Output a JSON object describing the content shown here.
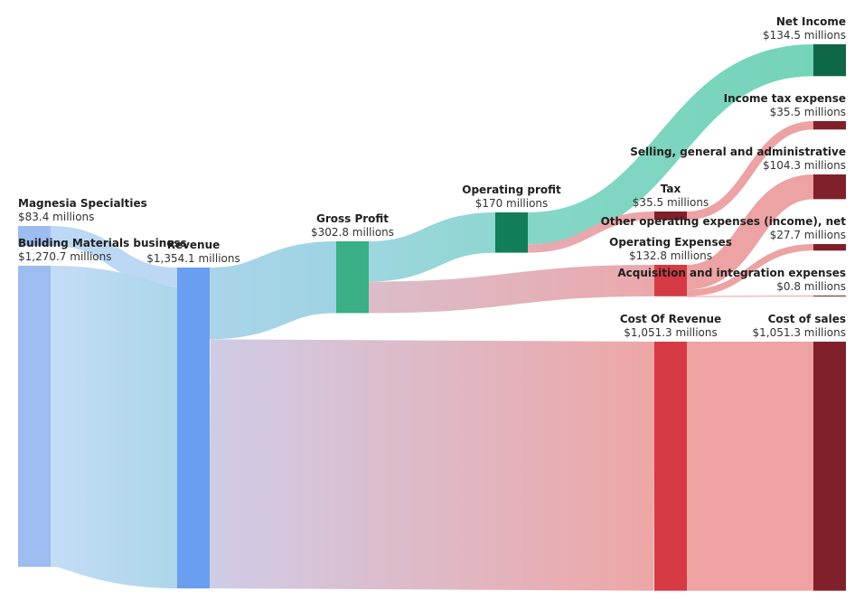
{
  "chart_data": {
    "type": "sankey",
    "title": "",
    "units": "$ millions",
    "nodes": [
      {
        "id": "magnesia",
        "name": "Magnesia Specialties",
        "value_label": "$83.4 millions",
        "value": 83.4,
        "color": "#9dbcef",
        "label_anchor": "start"
      },
      {
        "id": "building",
        "name": "Building Materials business",
        "value_label": "$1,270.7 millions",
        "value": 1270.7,
        "color": "#9dbcef",
        "label_anchor": "start"
      },
      {
        "id": "revenue",
        "name": "Revenue",
        "value_label": "$1,354.1 millions",
        "value": 1354.1,
        "color": "#6a9ef0",
        "label_anchor": "middle"
      },
      {
        "id": "gross_profit",
        "name": "Gross Profit",
        "value_label": "$302.8 millions",
        "value": 302.8,
        "color": "#3aae85",
        "label_anchor": "middle"
      },
      {
        "id": "cost_of_revenue",
        "name": "Cost Of Revenue",
        "value_label": "$1,051.3 millions",
        "value": 1051.3,
        "color": "#d63a44",
        "label_anchor": "middle"
      },
      {
        "id": "operating_profit",
        "name": "Operating profit",
        "value_label": "$170 millions",
        "value": 170,
        "color": "#117d59",
        "label_anchor": "middle"
      },
      {
        "id": "operating_expenses",
        "name": "Operating Expenses",
        "value_label": "$132.8 millions",
        "value": 132.8,
        "color": "#d63a44",
        "label_anchor": "middle"
      },
      {
        "id": "tax",
        "name": "Tax",
        "value_label": "$35.5 millions",
        "value": 35.5,
        "color": "#80202a",
        "label_anchor": "middle"
      },
      {
        "id": "net_income",
        "name": "Net Income",
        "value_label": "$134.5 millions",
        "value": 134.5,
        "color": "#0e6747",
        "label_anchor": "end"
      },
      {
        "id": "income_tax",
        "name": "Income tax expense",
        "value_label": "$35.5 millions",
        "value": 35.5,
        "color": "#80202a",
        "label_anchor": "end"
      },
      {
        "id": "sga",
        "name": "Selling, general and administrative",
        "value_label": "$104.3 millions",
        "value": 104.3,
        "color": "#80202a",
        "label_anchor": "end"
      },
      {
        "id": "other_opex",
        "name": "Other operating expenses (income), net",
        "value_label": "$27.7 millions",
        "value": 27.7,
        "color": "#80202a",
        "label_anchor": "end"
      },
      {
        "id": "acquisition",
        "name": "Acquisition and integration expenses",
        "value_label": "$0.8 millions",
        "value": 0.8,
        "color": "#80202a",
        "label_anchor": "end"
      },
      {
        "id": "cost_of_sales",
        "name": "Cost of sales",
        "value_label": "$1,051.3 millions",
        "value": 1051.3,
        "color": "#80202a",
        "label_anchor": "end"
      }
    ],
    "links": [
      {
        "source": "magnesia",
        "target": "revenue",
        "value": 83.4,
        "color_from": "#bcd8f5",
        "color_to": "#bcd8f5"
      },
      {
        "source": "building",
        "target": "revenue",
        "value": 1270.7,
        "color_from": "#c4dcf7",
        "color_to": "#acd6ea"
      },
      {
        "source": "revenue",
        "target": "gross_profit",
        "value": 302.8,
        "color_from": "#aad4ea",
        "color_to": "#9ed4e2"
      },
      {
        "source": "revenue",
        "target": "cost_of_revenue",
        "value": 1051.3,
        "color_from": "#cfcce6",
        "color_to": "#eea6a6"
      },
      {
        "source": "gross_profit",
        "target": "operating_profit",
        "value": 170,
        "color_from": "#9ed6e0",
        "color_to": "#8fd6d1"
      },
      {
        "source": "gross_profit",
        "target": "operating_expenses",
        "value": 132.8,
        "color_from": "#dbbdca",
        "color_to": "#eaa8ac"
      },
      {
        "source": "operating_profit",
        "target": "net_income",
        "value": 134.5,
        "color_from": "#86d6c7",
        "color_to": "#74d4b8"
      },
      {
        "source": "operating_profit",
        "target": "tax",
        "value": 35.5,
        "color_from": "#e6aab2",
        "color_to": "#eda4a8"
      },
      {
        "source": "tax",
        "target": "income_tax",
        "value": 35.5,
        "color_from": "#eda2a4",
        "color_to": "#eda2a4"
      },
      {
        "source": "operating_expenses",
        "target": "sga",
        "value": 104.3,
        "color_from": "#eda2a4",
        "color_to": "#eda2a4"
      },
      {
        "source": "operating_expenses",
        "target": "other_opex",
        "value": 27.7,
        "color_from": "#eda2a4",
        "color_to": "#eda2a4"
      },
      {
        "source": "operating_expenses",
        "target": "acquisition",
        "value": 0.8,
        "color_from": "#eda2a4",
        "color_to": "#eda2a4"
      },
      {
        "source": "cost_of_revenue",
        "target": "cost_of_sales",
        "value": 1051.3,
        "color_from": "#eea2a2",
        "color_to": "#eea2a2"
      }
    ]
  }
}
